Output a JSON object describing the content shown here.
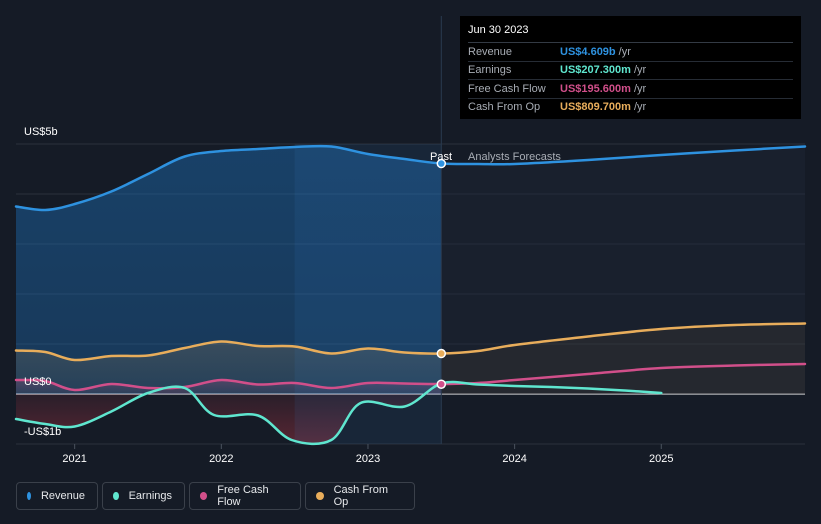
{
  "colors": {
    "revenue": "#2e92e0",
    "earnings": "#5fe6cf",
    "fcf": "#d14f8a",
    "cfo": "#e8ad5b",
    "background": "#151b26"
  },
  "tooltip": {
    "date": "Jun 30 2023",
    "rows": [
      {
        "label": "Revenue",
        "value": "US$4.609b",
        "unit": "/yr"
      },
      {
        "label": "Earnings",
        "value": "US$207.300m",
        "unit": "/yr"
      },
      {
        "label": "Free Cash Flow",
        "value": "US$195.600m",
        "unit": "/yr"
      },
      {
        "label": "Cash From Op",
        "value": "US$809.700m",
        "unit": "/yr"
      }
    ]
  },
  "labels": {
    "past": "Past",
    "forecast": "Analysts Forecasts"
  },
  "legend": [
    {
      "label": "Revenue",
      "icon": "revenue-dot"
    },
    {
      "label": "Earnings",
      "icon": "earnings-dot"
    },
    {
      "label": "Free Cash Flow",
      "icon": "fcf-dot"
    },
    {
      "label": "Cash From Op",
      "icon": "cfo-dot"
    }
  ],
  "chart_data": {
    "type": "line",
    "y_unit": "US$ billions",
    "ylim": [
      -1,
      5
    ],
    "yticks": [
      {
        "value": 5,
        "label": "US$5b"
      },
      {
        "value": 0,
        "label": "US$0"
      },
      {
        "value": -1,
        "label": "-US$1b"
      }
    ],
    "xlim": [
      2020.6,
      2025.98
    ],
    "xticks": [
      {
        "value": 2021,
        "label": "2021"
      },
      {
        "value": 2022,
        "label": "2022"
      },
      {
        "value": 2023,
        "label": "2023"
      },
      {
        "value": 2024,
        "label": "2024"
      },
      {
        "value": 2025,
        "label": "2025"
      }
    ],
    "past_end": 2023.5,
    "highlight_start": 2022.5,
    "grid": true,
    "series": [
      {
        "name": "Revenue",
        "key": "revenue",
        "points": [
          [
            2020.6,
            3.75
          ],
          [
            2020.8,
            3.68
          ],
          [
            2021,
            3.8
          ],
          [
            2021.25,
            4.05
          ],
          [
            2021.5,
            4.4
          ],
          [
            2021.75,
            4.75
          ],
          [
            2022,
            4.86
          ],
          [
            2022.25,
            4.9
          ],
          [
            2022.5,
            4.94
          ],
          [
            2022.75,
            4.95
          ],
          [
            2023,
            4.8
          ],
          [
            2023.25,
            4.7
          ],
          [
            2023.5,
            4.61
          ],
          [
            2023.75,
            4.6
          ],
          [
            2024,
            4.6
          ],
          [
            2024.5,
            4.68
          ],
          [
            2025,
            4.78
          ],
          [
            2025.5,
            4.87
          ],
          [
            2025.98,
            4.95
          ]
        ]
      },
      {
        "name": "Earnings",
        "key": "earnings",
        "points": [
          [
            2020.6,
            -0.5
          ],
          [
            2020.8,
            -0.6
          ],
          [
            2021,
            -0.65
          ],
          [
            2021.25,
            -0.35
          ],
          [
            2021.5,
            0.02
          ],
          [
            2021.75,
            0.12
          ],
          [
            2021.95,
            -0.42
          ],
          [
            2022.25,
            -0.43
          ],
          [
            2022.48,
            -0.92
          ],
          [
            2022.75,
            -0.92
          ],
          [
            2022.95,
            -0.18
          ],
          [
            2023.25,
            -0.25
          ],
          [
            2023.5,
            0.21
          ],
          [
            2023.75,
            0.19
          ],
          [
            2024,
            0.16
          ],
          [
            2024.25,
            0.14
          ],
          [
            2024.5,
            0.11
          ],
          [
            2024.75,
            0.07
          ],
          [
            2025,
            0.02
          ]
        ]
      },
      {
        "name": "Free Cash Flow",
        "key": "fcf",
        "points": [
          [
            2020.6,
            0.28
          ],
          [
            2020.8,
            0.26
          ],
          [
            2021,
            0.08
          ],
          [
            2021.25,
            0.2
          ],
          [
            2021.5,
            0.12
          ],
          [
            2021.75,
            0.14
          ],
          [
            2022,
            0.28
          ],
          [
            2022.25,
            0.19
          ],
          [
            2022.5,
            0.22
          ],
          [
            2022.75,
            0.12
          ],
          [
            2023,
            0.22
          ],
          [
            2023.25,
            0.21
          ],
          [
            2023.5,
            0.2
          ],
          [
            2023.75,
            0.22
          ],
          [
            2024,
            0.28
          ],
          [
            2024.5,
            0.4
          ],
          [
            2025,
            0.52
          ],
          [
            2025.5,
            0.57
          ],
          [
            2025.98,
            0.6
          ]
        ]
      },
      {
        "name": "Cash From Op",
        "key": "cfo",
        "points": [
          [
            2020.6,
            0.87
          ],
          [
            2020.8,
            0.84
          ],
          [
            2021,
            0.68
          ],
          [
            2021.25,
            0.76
          ],
          [
            2021.5,
            0.77
          ],
          [
            2021.75,
            0.92
          ],
          [
            2022,
            1.05
          ],
          [
            2022.25,
            0.96
          ],
          [
            2022.5,
            0.95
          ],
          [
            2022.75,
            0.81
          ],
          [
            2023,
            0.91
          ],
          [
            2023.25,
            0.83
          ],
          [
            2023.5,
            0.81
          ],
          [
            2023.75,
            0.86
          ],
          [
            2024,
            0.98
          ],
          [
            2024.5,
            1.15
          ],
          [
            2025,
            1.3
          ],
          [
            2025.5,
            1.38
          ],
          [
            2025.98,
            1.41
          ]
        ]
      }
    ],
    "markers": [
      {
        "key": "revenue",
        "x": 2023.5,
        "y": 4.609
      },
      {
        "key": "cfo",
        "x": 2023.5,
        "y": 0.8097
      },
      {
        "key": "fcf",
        "x": 2023.5,
        "y": 0.1956
      }
    ]
  }
}
